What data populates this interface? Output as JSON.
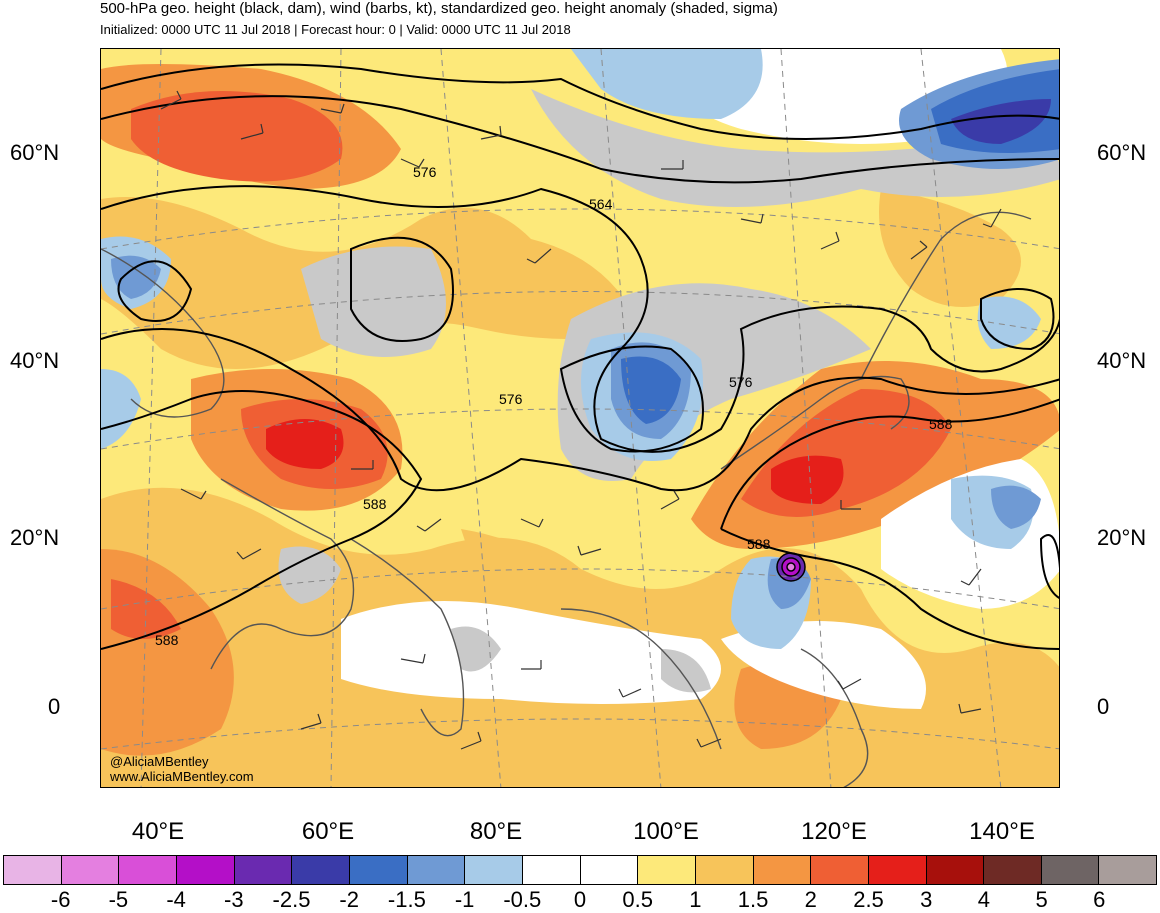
{
  "header": {
    "title": "500-hPa geo. height (black, dam), wind (barbs, kt), standardized geo. height anomaly (shaded, sigma)",
    "subtitle": "Initialized: 0000 UTC 11 Jul 2018 | Forecast hour: 0 | Valid: 0000 UTC 11 Jul 2018"
  },
  "map": {
    "lat_labels": [
      "60°N",
      "40°N",
      "20°N",
      "0"
    ],
    "lon_labels": [
      "40°E",
      "60°E",
      "80°E",
      "100°E",
      "120°E",
      "140°E"
    ],
    "contour_labels": [
      "576",
      "564",
      "576",
      "576",
      "588",
      "588",
      "588",
      "588"
    ],
    "credit_handle": "@AliciaMBentley",
    "credit_url": "www.AliciaMBentley.com"
  },
  "colorbar": {
    "labels": [
      "-6",
      "-5",
      "-4",
      "-3",
      "-2.5",
      "-2",
      "-1.5",
      "-1",
      "-0.5",
      "0",
      "0.5",
      "1",
      "1.5",
      "2",
      "2.5",
      "3",
      "4",
      "5",
      "6"
    ],
    "colors": [
      "#e8b4e6",
      "#e47fe0",
      "#d94fd8",
      "#b40fc8",
      "#6a2ab0",
      "#3a3ba8",
      "#3a6ec4",
      "#6f9ad4",
      "#a7cbe8",
      "#ffffff",
      "#ffffff",
      "#fde97a",
      "#f7c45a",
      "#f49642",
      "#ef5f34",
      "#e51f1a",
      "#a7100c",
      "#6e2a25",
      "#6e6464",
      "#a89d9b"
    ]
  }
}
